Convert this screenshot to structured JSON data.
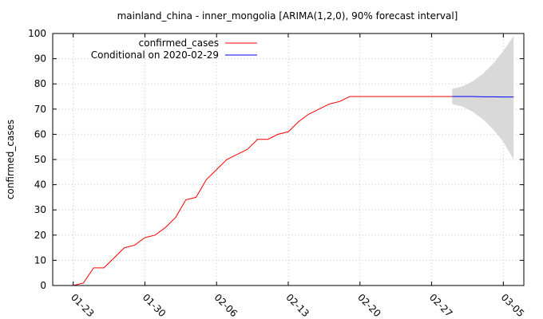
{
  "chart_data": {
    "type": "line",
    "title": "mainland_china - inner_mongolia [ARIMA(1,2,0), 90% forecast interval]",
    "xlabel": "",
    "ylabel": "confirmed_cases",
    "ylim": [
      0,
      100
    ],
    "yticks": [
      0,
      10,
      20,
      30,
      40,
      50,
      60,
      70,
      80,
      90,
      100
    ],
    "xlim": [
      "2020-01-21",
      "2020-03-07"
    ],
    "xticks": [
      "2020-01-23",
      "2020-01-30",
      "2020-02-06",
      "2020-02-13",
      "2020-02-20",
      "2020-02-27",
      "2020-03-05"
    ],
    "xtick_labels": [
      "01-23",
      "01-30",
      "02-06",
      "02-13",
      "02-20",
      "02-27",
      "03-05"
    ],
    "grid": true,
    "legend_position": "top-left",
    "series": [
      {
        "name": "confirmed_cases",
        "color": "#ff0000",
        "points": [
          [
            "2020-01-23",
            0
          ],
          [
            "2020-01-24",
            1
          ],
          [
            "2020-01-25",
            7
          ],
          [
            "2020-01-26",
            7
          ],
          [
            "2020-01-27",
            11
          ],
          [
            "2020-01-28",
            15
          ],
          [
            "2020-01-29",
            16
          ],
          [
            "2020-01-30",
            19
          ],
          [
            "2020-01-31",
            20
          ],
          [
            "2020-02-01",
            23
          ],
          [
            "2020-02-02",
            27
          ],
          [
            "2020-02-03",
            34
          ],
          [
            "2020-02-04",
            35
          ],
          [
            "2020-02-05",
            42
          ],
          [
            "2020-02-06",
            46
          ],
          [
            "2020-02-07",
            50
          ],
          [
            "2020-02-08",
            52
          ],
          [
            "2020-02-09",
            54
          ],
          [
            "2020-02-10",
            58
          ],
          [
            "2020-02-11",
            58
          ],
          [
            "2020-02-12",
            60
          ],
          [
            "2020-02-13",
            61
          ],
          [
            "2020-02-14",
            65
          ],
          [
            "2020-02-15",
            68
          ],
          [
            "2020-02-16",
            70
          ],
          [
            "2020-02-17",
            72
          ],
          [
            "2020-02-18",
            73
          ],
          [
            "2020-02-19",
            75
          ],
          [
            "2020-02-20",
            75
          ],
          [
            "2020-02-21",
            75
          ],
          [
            "2020-02-22",
            75
          ],
          [
            "2020-02-23",
            75
          ],
          [
            "2020-02-24",
            75
          ],
          [
            "2020-02-25",
            75
          ],
          [
            "2020-02-26",
            75
          ],
          [
            "2020-02-27",
            75
          ],
          [
            "2020-02-28",
            75
          ],
          [
            "2020-02-29",
            75
          ]
        ]
      },
      {
        "name": "Conditional on 2020-02-29",
        "color": "#0000ff",
        "points": [
          [
            "2020-02-29",
            75
          ],
          [
            "2020-03-01",
            75
          ],
          [
            "2020-03-02",
            75
          ],
          [
            "2020-03-03",
            74.9
          ],
          [
            "2020-03-04",
            74.9
          ],
          [
            "2020-03-05",
            74.8
          ],
          [
            "2020-03-06",
            74.8
          ]
        ]
      }
    ],
    "interval": {
      "label": "90% forecast interval",
      "color": "#d9d9d9",
      "points": [
        [
          "2020-02-29",
          72,
          78
        ],
        [
          "2020-03-01",
          71,
          79
        ],
        [
          "2020-03-02",
          69,
          81
        ],
        [
          "2020-03-03",
          66,
          84
        ],
        [
          "2020-03-04",
          62,
          88
        ],
        [
          "2020-03-05",
          57,
          93
        ],
        [
          "2020-03-06",
          50,
          99
        ]
      ]
    }
  }
}
